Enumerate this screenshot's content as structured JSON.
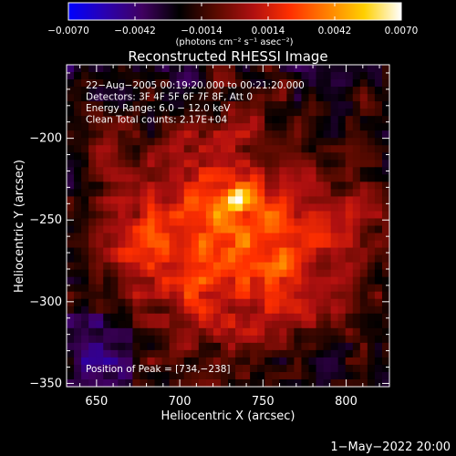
{
  "chart_data": {
    "type": "heatmap",
    "title": "Reconstructed RHESSI Image",
    "xlabel": "Heliocentric X (arcsec)",
    "ylabel": "Heliocentric Y (arcsec)",
    "xlim": [
      632,
      826
    ],
    "ylim": [
      -352,
      -155
    ],
    "x_ticks": [
      650,
      700,
      750,
      800
    ],
    "x_tick_labels": [
      "650",
      "700",
      "750",
      "800"
    ],
    "y_ticks": [
      -200,
      -250,
      -300,
      -350
    ],
    "y_tick_labels": [
      "−200",
      "−250",
      "−300",
      "−350"
    ],
    "colorbar": {
      "range": [
        -0.007,
        0.007
      ],
      "ticks": [
        -0.007,
        -0.0042,
        -0.0014,
        0.0014,
        0.0042,
        0.007
      ],
      "tick_labels": [
        "−0.0070",
        "−0.0042",
        "−0.0014",
        "0.0014",
        "0.0042",
        "0.0070"
      ],
      "units_label": "(photons cm⁻² s⁻¹ asec⁻²)",
      "colormap": [
        "#0000ff",
        "#2a00b0",
        "#400060",
        "#000000",
        "#5a0a00",
        "#b01010",
        "#ff3000",
        "#ff8000",
        "#ffd000",
        "#ffffff"
      ]
    },
    "annotations": [
      "22−Aug−2005 00:19:20.000 to 00:21:20.000",
      "Detectors: 3F 4F 5F 6F 7F 8F, Att 0",
      "Energy Range: 6.0 − 12.0 keV",
      "Clean     Total counts: 2.17E+04"
    ],
    "peak_label": "Position of Peak = [734,−238]",
    "peak_position": [
      734,
      -238
    ],
    "timestamp": "1−May−2022 20:00"
  }
}
